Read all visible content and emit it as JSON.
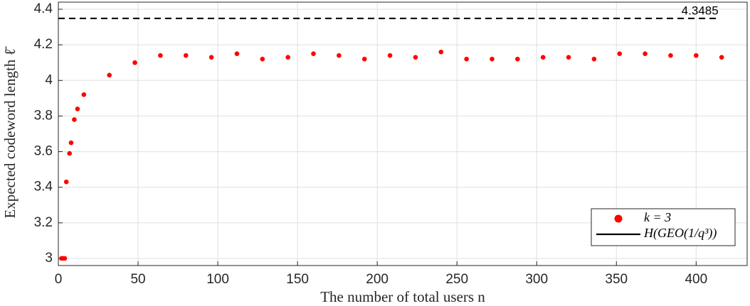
{
  "chart_data": {
    "type": "scatter",
    "x_label": "The number of total users n",
    "y_label": "Expected codeword length ℓ̄",
    "xlim": [
      0,
      432
    ],
    "ylim": [
      2.96,
      4.44
    ],
    "xticks": [
      0,
      50,
      100,
      150,
      200,
      250,
      300,
      350,
      400
    ],
    "yticks": [
      3,
      3.2,
      3.4,
      3.6,
      3.8,
      4,
      4.2,
      4.4
    ],
    "grid": true,
    "legend_position": "lower right",
    "series": [
      {
        "name": "k = 3",
        "color": "#ff0000",
        "marker": "dot",
        "x": [
          2,
          3,
          4,
          5,
          7,
          8,
          10,
          12,
          16,
          32,
          48,
          64,
          80,
          96,
          112,
          128,
          144,
          160,
          176,
          192,
          208,
          224,
          240,
          256,
          272,
          288,
          304,
          320,
          336,
          352,
          368,
          384,
          400,
          416
        ],
        "values": [
          3.0,
          3.0,
          3.0,
          3.43,
          3.59,
          3.65,
          3.78,
          3.84,
          3.92,
          4.03,
          4.1,
          4.14,
          4.14,
          4.13,
          4.15,
          4.12,
          4.13,
          4.15,
          4.14,
          4.12,
          4.14,
          4.13,
          4.16,
          4.12,
          4.12,
          4.12,
          4.13,
          4.13,
          4.12,
          4.15,
          4.15,
          4.14,
          4.14,
          4.13
        ]
      },
      {
        "name": "H(GEO(1/q³))",
        "color": "#000000",
        "line_style": "dashed",
        "x": [
          0,
          414
        ],
        "values": [
          4.3485,
          4.3485
        ]
      }
    ]
  }
}
